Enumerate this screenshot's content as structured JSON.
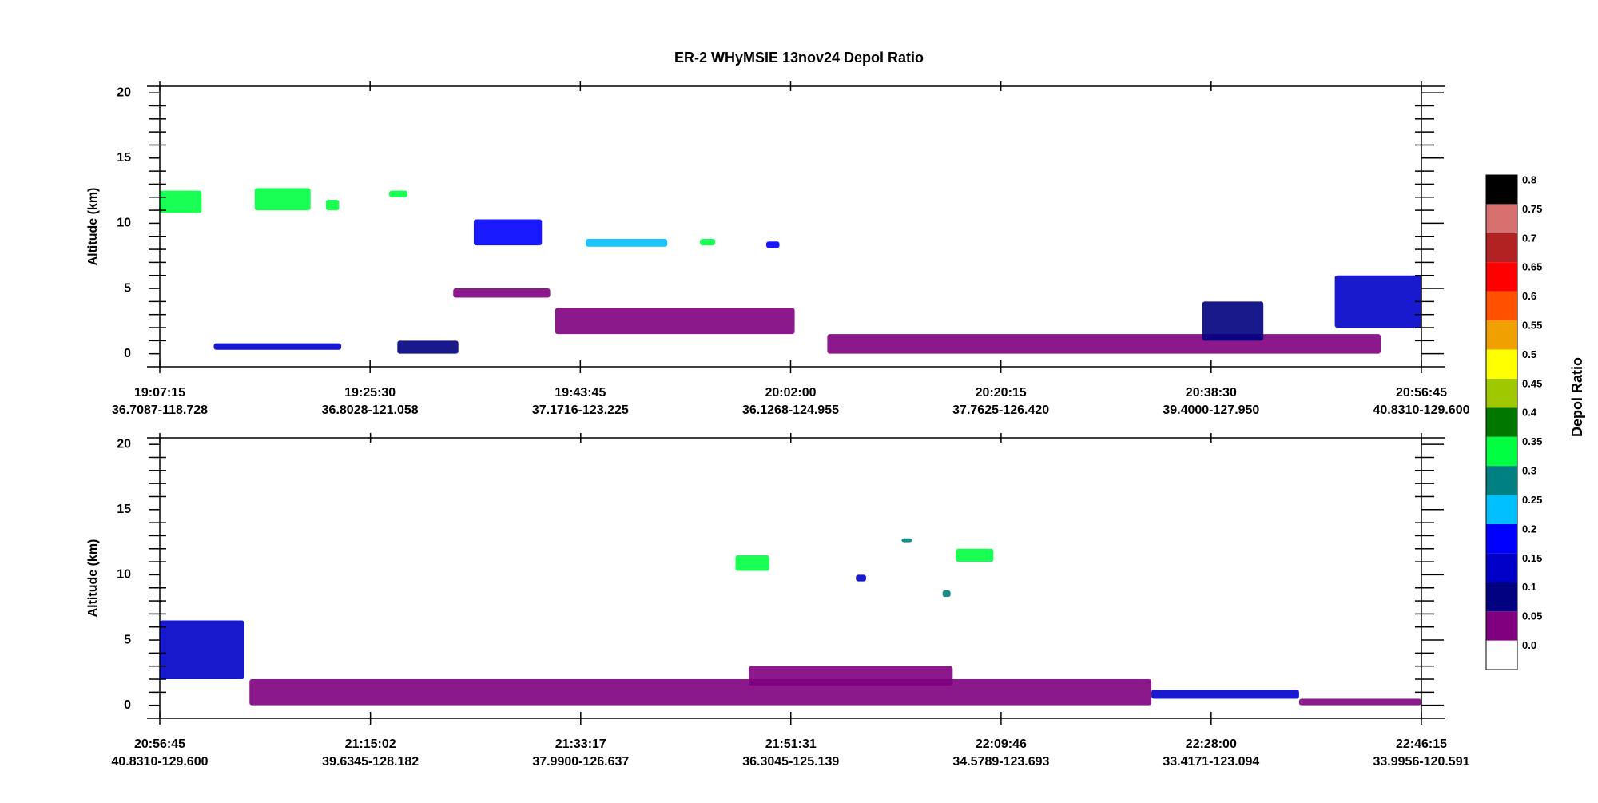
{
  "title": "ER-2 WHyMSIE 13nov24 Depol Ratio",
  "chart_data": [
    {
      "type": "curtain",
      "y_label": "Altitude (km)",
      "xlim": [
        "19:07:15",
        "20:56:45"
      ],
      "xticks": [
        {
          "value": "19:07:15",
          "label": "36.7087-118.728"
        },
        {
          "value": "19:25:30",
          "label": "36.8028-121.058"
        },
        {
          "value": "19:43:45",
          "label": "37.1716-123.225"
        },
        {
          "value": "20:02:00",
          "label": "36.1268-124.955"
        },
        {
          "value": "20:20:15",
          "label": "37.7625-126.420"
        },
        {
          "value": "20:38:30",
          "label": "39.4000-127.950"
        },
        {
          "value": "20:56:45",
          "label": "40.8310-129.600"
        }
      ],
      "ylim": [
        -1,
        20.5
      ],
      "yticks": [
        0,
        5,
        10,
        15,
        20
      ],
      "features": [
        {
          "x": [
            "19:07:15",
            "19:10:53"
          ],
          "y": [
            10.8,
            12.5
          ],
          "depol": 0.33
        },
        {
          "x": [
            "19:15:29",
            "19:20:20"
          ],
          "y": [
            11,
            12.7
          ],
          "depol": 0.33
        },
        {
          "x": [
            "19:21:40",
            "19:22:49"
          ],
          "y": [
            11,
            11.8
          ],
          "depol": 0.33
        },
        {
          "x": [
            "19:27:09",
            "19:28:45"
          ],
          "y": [
            12,
            12.5
          ],
          "depol": 0.33
        },
        {
          "x": [
            "19:34:30",
            "19:40:25"
          ],
          "y": [
            8.3,
            10.3
          ],
          "depol": 0.18
        },
        {
          "x": [
            "19:44:13",
            "19:51:18"
          ],
          "y": [
            8.2,
            8.8
          ],
          "depol": 0.23
        },
        {
          "x": [
            "19:54:08",
            "19:55:27"
          ],
          "y": [
            8.3,
            8.8
          ],
          "depol": 0.33
        },
        {
          "x": [
            "19:59:53",
            "20:01:02"
          ],
          "y": [
            8.1,
            8.6
          ],
          "depol": 0.18
        },
        {
          "x": [
            "19:32:43",
            "19:41:08"
          ],
          "y": [
            4.3,
            5
          ],
          "depol": 0.03
        },
        {
          "x": [
            "19:41:34",
            "20:02:21"
          ],
          "y": [
            1.5,
            3.5
          ],
          "depol": 0.03
        },
        {
          "x": [
            "19:11:56",
            "19:23:00"
          ],
          "y": [
            0.3,
            0.8
          ],
          "depol": 0.13
        },
        {
          "x": [
            "19:27:52",
            "19:33:10"
          ],
          "y": [
            0,
            1
          ],
          "depol": 0.08
        },
        {
          "x": [
            "20:05:11",
            "20:53:13"
          ],
          "y": [
            0,
            1.5
          ],
          "depol": 0.03
        },
        {
          "x": [
            "20:37:44",
            "20:43:02"
          ],
          "y": [
            1,
            4
          ],
          "depol": 0.08
        },
        {
          "x": [
            "20:49:14",
            "20:56:45"
          ],
          "y": [
            2,
            6
          ],
          "depol": 0.13
        }
      ]
    },
    {
      "type": "curtain",
      "y_label": "Altitude (km)",
      "xlim": [
        "20:56:45",
        "22:46:15"
      ],
      "xticks": [
        {
          "value": "20:56:45",
          "label": "40.8310-129.600"
        },
        {
          "value": "21:15:02",
          "label": "39.6345-128.182"
        },
        {
          "value": "21:33:17",
          "label": "37.9900-126.637"
        },
        {
          "value": "21:51:31",
          "label": "36.3045-125.139"
        },
        {
          "value": "22:09:46",
          "label": "34.5789-123.693"
        },
        {
          "value": "22:28:00",
          "label": "33.4171-123.094"
        },
        {
          "value": "22:46:15",
          "label": "33.9956-120.591"
        }
      ],
      "ylim": [
        -1,
        20.5
      ],
      "yticks": [
        0,
        5,
        10,
        15,
        20
      ],
      "features": [
        {
          "x": [
            "20:56:45",
            "21:04:05"
          ],
          "y": [
            2,
            6.5
          ],
          "depol": 0.13
        },
        {
          "x": [
            "21:04:32",
            "22:22:49"
          ],
          "y": [
            0,
            2
          ],
          "depol": 0.03
        },
        {
          "x": [
            "22:22:49",
            "22:35:38"
          ],
          "y": [
            0.5,
            1.2
          ],
          "depol": 0.13
        },
        {
          "x": [
            "22:35:38",
            "22:46:15"
          ],
          "y": [
            0,
            0.5
          ],
          "depol": 0.03
        },
        {
          "x": [
            "21:46:43",
            "21:49:39"
          ],
          "y": [
            10.3,
            11.5
          ],
          "depol": 0.33
        },
        {
          "x": [
            "22:05:50",
            "22:09:06"
          ],
          "y": [
            11,
            12
          ],
          "depol": 0.33
        },
        {
          "x": [
            "22:01:08",
            "22:02:02"
          ],
          "y": [
            12.5,
            12.8
          ],
          "depol": 0.28
        },
        {
          "x": [
            "21:57:10",
            "21:58:03"
          ],
          "y": [
            9.5,
            10
          ],
          "depol": 0.13
        },
        {
          "x": [
            "22:04:41",
            "22:05:23"
          ],
          "y": [
            8.3,
            8.8
          ],
          "depol": 0.28
        },
        {
          "x": [
            "21:47:52",
            "22:05:34"
          ],
          "y": [
            1.5,
            3
          ],
          "depol": 0.03
        }
      ]
    }
  ],
  "colorbar": {
    "label": "Depol Ratio",
    "ticks": [
      {
        "value": 0,
        "label": "0.0"
      },
      0.05,
      0.1,
      0.15,
      0.2,
      0.25,
      0.3,
      0.35,
      0.4,
      0.45,
      0.5,
      0.55,
      0.6,
      0.65,
      0.7,
      0.75,
      0.8
    ],
    "colors": [
      "#ffffff",
      "#800080",
      "#000080",
      "#0000c8",
      "#0000ff",
      "#00bfff",
      "#008080",
      "#00ff40",
      "#007800",
      "#a0c800",
      "#ffff00",
      "#f0a000",
      "#ff5000",
      "#ff0000",
      "#b22222",
      "#d87070",
      "#000000"
    ]
  }
}
